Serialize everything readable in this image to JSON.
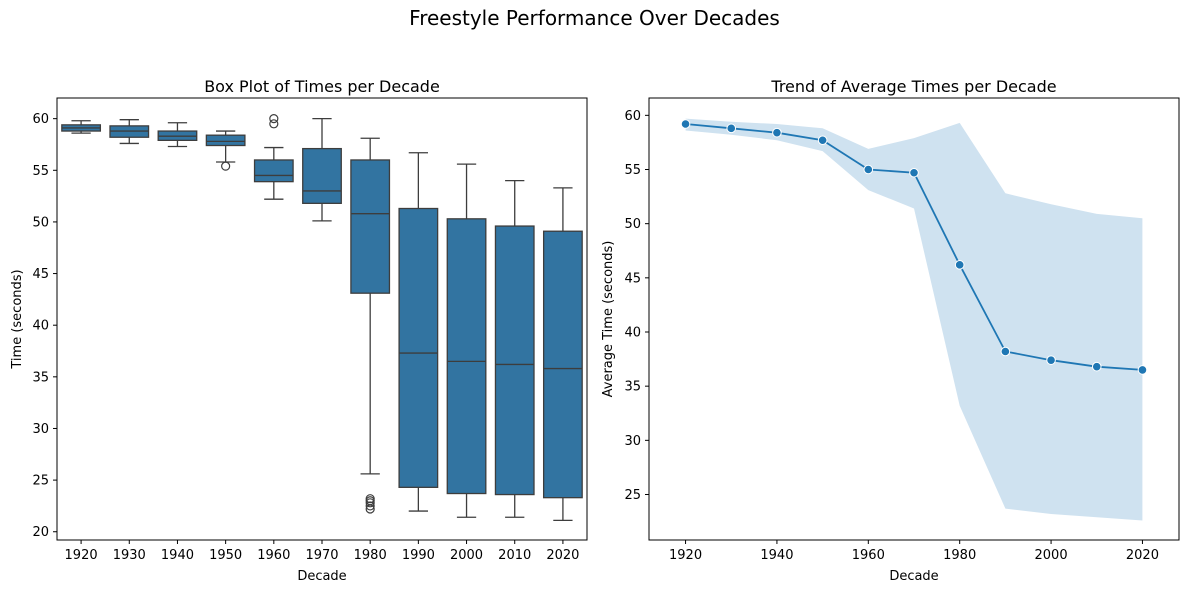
{
  "figure": {
    "title": "Freestyle Performance Over Decades"
  },
  "colors": {
    "box_fill": "#3274a1",
    "box_edge": "#3d3d3d",
    "line": "#1f77b4",
    "band": "#cfe2f0"
  },
  "chart_data": [
    {
      "type": "box",
      "title": "Box Plot of Times per Decade",
      "xlabel": "Decade",
      "ylabel": "Time (seconds)",
      "ylim": [
        19.2,
        62.0
      ],
      "yticks": [
        20,
        25,
        30,
        35,
        40,
        45,
        50,
        55,
        60
      ],
      "categories": [
        "1920",
        "1930",
        "1940",
        "1950",
        "1960",
        "1970",
        "1980",
        "1990",
        "2000",
        "2010",
        "2020"
      ],
      "boxes": [
        {
          "whisker_low": 58.6,
          "q1": 58.8,
          "median": 59.1,
          "q3": 59.4,
          "whisker_high": 59.8,
          "outliers": []
        },
        {
          "whisker_low": 57.6,
          "q1": 58.2,
          "median": 58.8,
          "q3": 59.3,
          "whisker_high": 59.9,
          "outliers": []
        },
        {
          "whisker_low": 57.3,
          "q1": 57.9,
          "median": 58.3,
          "q3": 58.8,
          "whisker_high": 59.6,
          "outliers": []
        },
        {
          "whisker_low": 55.8,
          "q1": 57.4,
          "median": 57.8,
          "q3": 58.4,
          "whisker_high": 58.8,
          "outliers": [
            55.4
          ]
        },
        {
          "whisker_low": 52.2,
          "q1": 53.9,
          "median": 54.5,
          "q3": 56.0,
          "whisker_high": 57.2,
          "outliers": [
            59.5,
            60.0
          ]
        },
        {
          "whisker_low": 50.1,
          "q1": 51.8,
          "median": 53.0,
          "q3": 57.1,
          "whisker_high": 60.0,
          "outliers": []
        },
        {
          "whisker_low": 25.6,
          "q1": 43.1,
          "median": 50.8,
          "q3": 56.0,
          "whisker_high": 58.1,
          "outliers": [
            22.2,
            22.5,
            22.8,
            23.0,
            23.2
          ]
        },
        {
          "whisker_low": 22.0,
          "q1": 24.3,
          "median": 37.3,
          "q3": 51.3,
          "whisker_high": 56.7,
          "outliers": []
        },
        {
          "whisker_low": 21.4,
          "q1": 23.7,
          "median": 36.5,
          "q3": 50.3,
          "whisker_high": 55.6,
          "outliers": []
        },
        {
          "whisker_low": 21.4,
          "q1": 23.6,
          "median": 36.2,
          "q3": 49.6,
          "whisker_high": 54.0,
          "outliers": []
        },
        {
          "whisker_low": 21.1,
          "q1": 23.3,
          "median": 35.8,
          "q3": 49.1,
          "whisker_high": 53.3,
          "outliers": []
        }
      ]
    },
    {
      "type": "line",
      "title": "Trend of Average Times per Decade",
      "xlabel": "Decade",
      "ylabel": "Average Time (seconds)",
      "xlim": [
        1912,
        2028
      ],
      "ylim": [
        20.8,
        61.6
      ],
      "xticks": [
        1920,
        1940,
        1960,
        1980,
        2000,
        2020
      ],
      "yticks": [
        25,
        30,
        35,
        40,
        45,
        50,
        55,
        60
      ],
      "x": [
        1920,
        1930,
        1940,
        1950,
        1960,
        1970,
        1980,
        1990,
        2000,
        2010,
        2020
      ],
      "y": [
        59.2,
        58.8,
        58.4,
        57.7,
        55.0,
        54.7,
        46.2,
        38.2,
        37.4,
        36.8,
        36.5
      ],
      "band_upper": [
        59.7,
        59.4,
        59.2,
        58.8,
        56.9,
        57.9,
        59.3,
        52.8,
        51.8,
        50.9,
        50.5
      ],
      "band_lower": [
        58.6,
        58.2,
        57.7,
        56.7,
        53.1,
        51.4,
        33.2,
        23.7,
        23.2,
        22.9,
        22.6
      ]
    }
  ]
}
